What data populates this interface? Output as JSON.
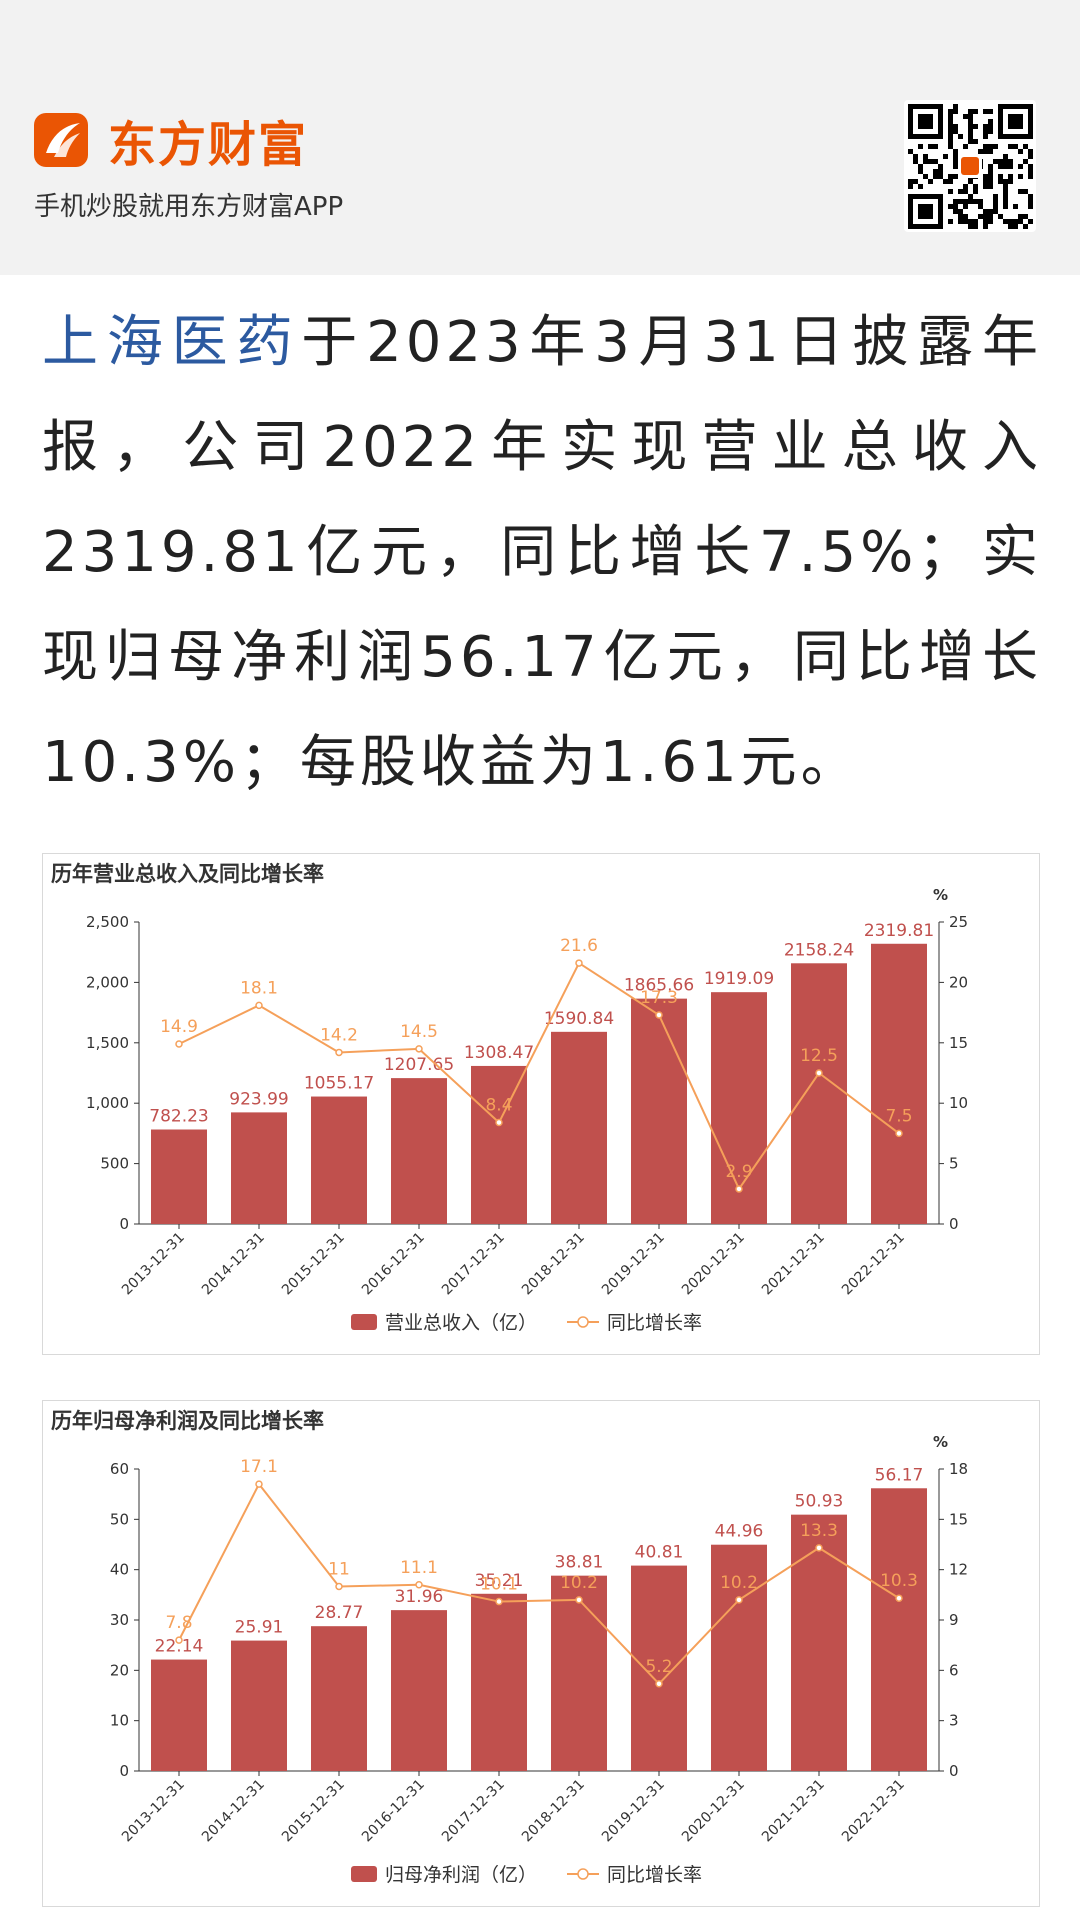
{
  "header": {
    "brand": "东方财富",
    "tagline": "手机炒股就用东方财富APP",
    "brand_color": "#ea5504",
    "logo_icon": "eastmoney-logo-icon",
    "qr_icon": "qr-code-icon"
  },
  "article": {
    "stock_name": "上海医药",
    "text_rest": "于2023年3月31日披露年报，公司2022年实现营业总收入2319.81亿元，同比增长7.5%；实现归母净利润56.17亿元，同比增长10.3%；每股收益为1.61元。",
    "stock_color": "#2c5aa0"
  },
  "chart_data": [
    {
      "type": "bar",
      "title": "历年营业总收入及同比增长率",
      "categories": [
        "2013-12-31",
        "2014-12-31",
        "2015-12-31",
        "2016-12-31",
        "2017-12-31",
        "2018-12-31",
        "2019-12-31",
        "2020-12-31",
        "2021-12-31",
        "2022-12-31"
      ],
      "series": [
        {
          "name": "营业总收入（亿）",
          "type": "bar",
          "axis": "left",
          "color": "#c0504d",
          "values": [
            782.23,
            923.99,
            1055.17,
            1207.65,
            1308.47,
            1590.84,
            1865.66,
            1919.09,
            2158.24,
            2319.81
          ]
        },
        {
          "name": "同比增长率",
          "type": "line",
          "axis": "right",
          "color": "#f5a05a",
          "values": [
            14.9,
            18.1,
            14.2,
            14.5,
            8.4,
            21.6,
            17.3,
            2.9,
            12.5,
            7.5
          ]
        }
      ],
      "left_axis": {
        "min": 0,
        "max": 2500,
        "ticks": [
          "0",
          "500",
          "1,000",
          "1,500",
          "2,000",
          "2,500"
        ]
      },
      "right_axis": {
        "min": 0,
        "max": 25,
        "unit": "%",
        "ticks": [
          "0",
          "5",
          "10",
          "15",
          "20",
          "25"
        ]
      },
      "legend": {
        "position": "bottom",
        "bar_label": "营业总收入（亿）",
        "line_label": "同比增长率"
      }
    },
    {
      "type": "bar",
      "title": "历年归母净利润及同比增长率",
      "categories": [
        "2013-12-31",
        "2014-12-31",
        "2015-12-31",
        "2016-12-31",
        "2017-12-31",
        "2018-12-31",
        "2019-12-31",
        "2020-12-31",
        "2021-12-31",
        "2022-12-31"
      ],
      "series": [
        {
          "name": "归母净利润（亿）",
          "type": "bar",
          "axis": "left",
          "color": "#c0504d",
          "values": [
            22.14,
            25.91,
            28.77,
            31.96,
            35.21,
            38.81,
            40.81,
            44.96,
            50.93,
            56.17
          ]
        },
        {
          "name": "同比增长率",
          "type": "line",
          "axis": "right",
          "color": "#f5a05a",
          "values": [
            7.8,
            17.1,
            11,
            11.1,
            10.1,
            10.2,
            5.2,
            10.2,
            13.3,
            10.3
          ]
        }
      ],
      "left_axis": {
        "min": 0,
        "max": 60,
        "ticks": [
          "0",
          "10",
          "20",
          "30",
          "40",
          "50",
          "60"
        ]
      },
      "right_axis": {
        "min": 0,
        "max": 18,
        "unit": "%",
        "ticks": [
          "0",
          "3",
          "6",
          "9",
          "12",
          "15",
          "18"
        ]
      },
      "legend": {
        "position": "bottom",
        "bar_label": "归母净利润（亿）",
        "line_label": "同比增长率"
      }
    }
  ]
}
